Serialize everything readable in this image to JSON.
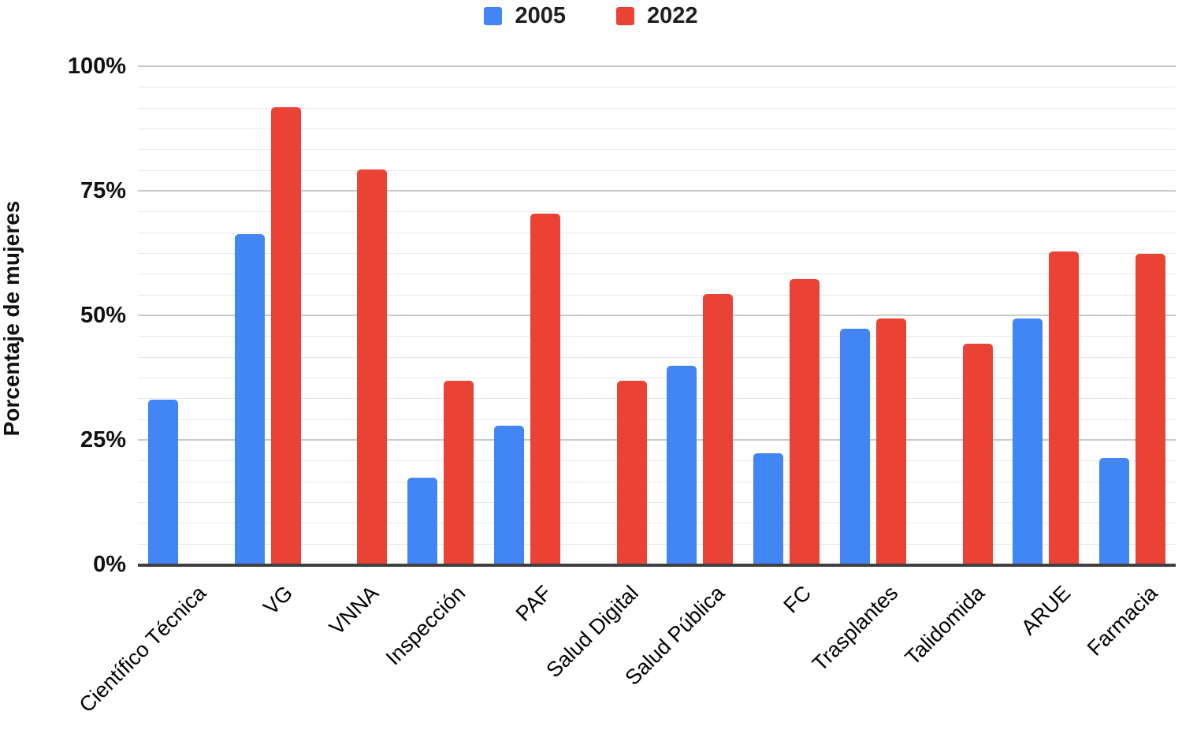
{
  "chart_data": {
    "type": "bar",
    "title": "",
    "xlabel": "",
    "ylabel": "Porcentaje de mujeres",
    "ylim": [
      0,
      100
    ],
    "yticks": [
      0,
      25,
      50,
      75,
      100
    ],
    "ytick_labels": [
      "0%",
      "25%",
      "50%",
      "75%",
      "100%"
    ],
    "grid": true,
    "minor_grid_subdivisions_per_major": 6,
    "legend_position": "top-center",
    "categories": [
      "Científico Técnica",
      "VG",
      "VNNA",
      "Inspección",
      "PAF",
      "Salud Digital",
      "Salud Pública",
      "FC",
      "Trasplantes",
      "Talidomida",
      "ARUE",
      "Farmacia"
    ],
    "series": [
      {
        "name": "2005",
        "color": "#4285F4",
        "values": [
          33.3,
          66.5,
          null,
          17.5,
          28,
          null,
          40,
          22.5,
          47.5,
          null,
          49.5,
          21.5
        ]
      },
      {
        "name": "2022",
        "color": "#EA4335",
        "values": [
          null,
          92,
          79.5,
          37,
          70.5,
          37,
          54.5,
          57.5,
          49.5,
          44.5,
          63,
          62.5
        ]
      }
    ],
    "axis_color": "#404040",
    "major_gridline_color": "#c9c9c9",
    "minor_gridline_color": "#e8e8e8"
  }
}
